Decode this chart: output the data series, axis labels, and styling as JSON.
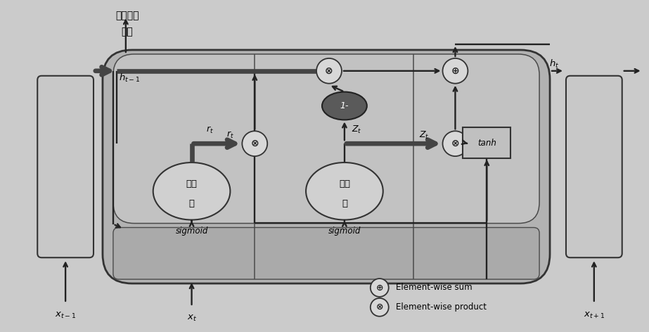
{
  "fig_bg": "#cbcbcb",
  "main_box_fc": "#b2b2b2",
  "inner_fc": "#c2c2c2",
  "rect_fc": "#c8c8c8",
  "bar_fc": "#aaaaaa",
  "gate_ellipse_fc": "#d0d0d0",
  "op_circle_fc": "#d8d8d8",
  "dark_ellipse_fc": "#5a5a5a",
  "tanh_fc": "#c0c0c0",
  "edge_col": "#333333",
  "arr_col": "#222222",
  "thick_col": "#444444",
  "title_text1": "隐式编码",
  "title_text2": "信息",
  "label_h_t_minus1": "$h_{t-1}$",
  "label_h_t": "$h_t$",
  "label_x_t_minus1": "$x_{t-1}$",
  "label_x_t": "$x_t$",
  "label_x_t_plus1": "$x_{t+1}$",
  "label_reset_1": "重置",
  "label_reset_2": "门",
  "label_update_1": "更新",
  "label_update_2": "门",
  "label_sigmoid": "sigmoid",
  "label_tanh": "tanh",
  "label_r_t": "$r_t$",
  "label_z_t": "$Z_t$",
  "label_1minus": "1-",
  "legend_sum": "Element-wise sum",
  "legend_product": "Element-wise product"
}
